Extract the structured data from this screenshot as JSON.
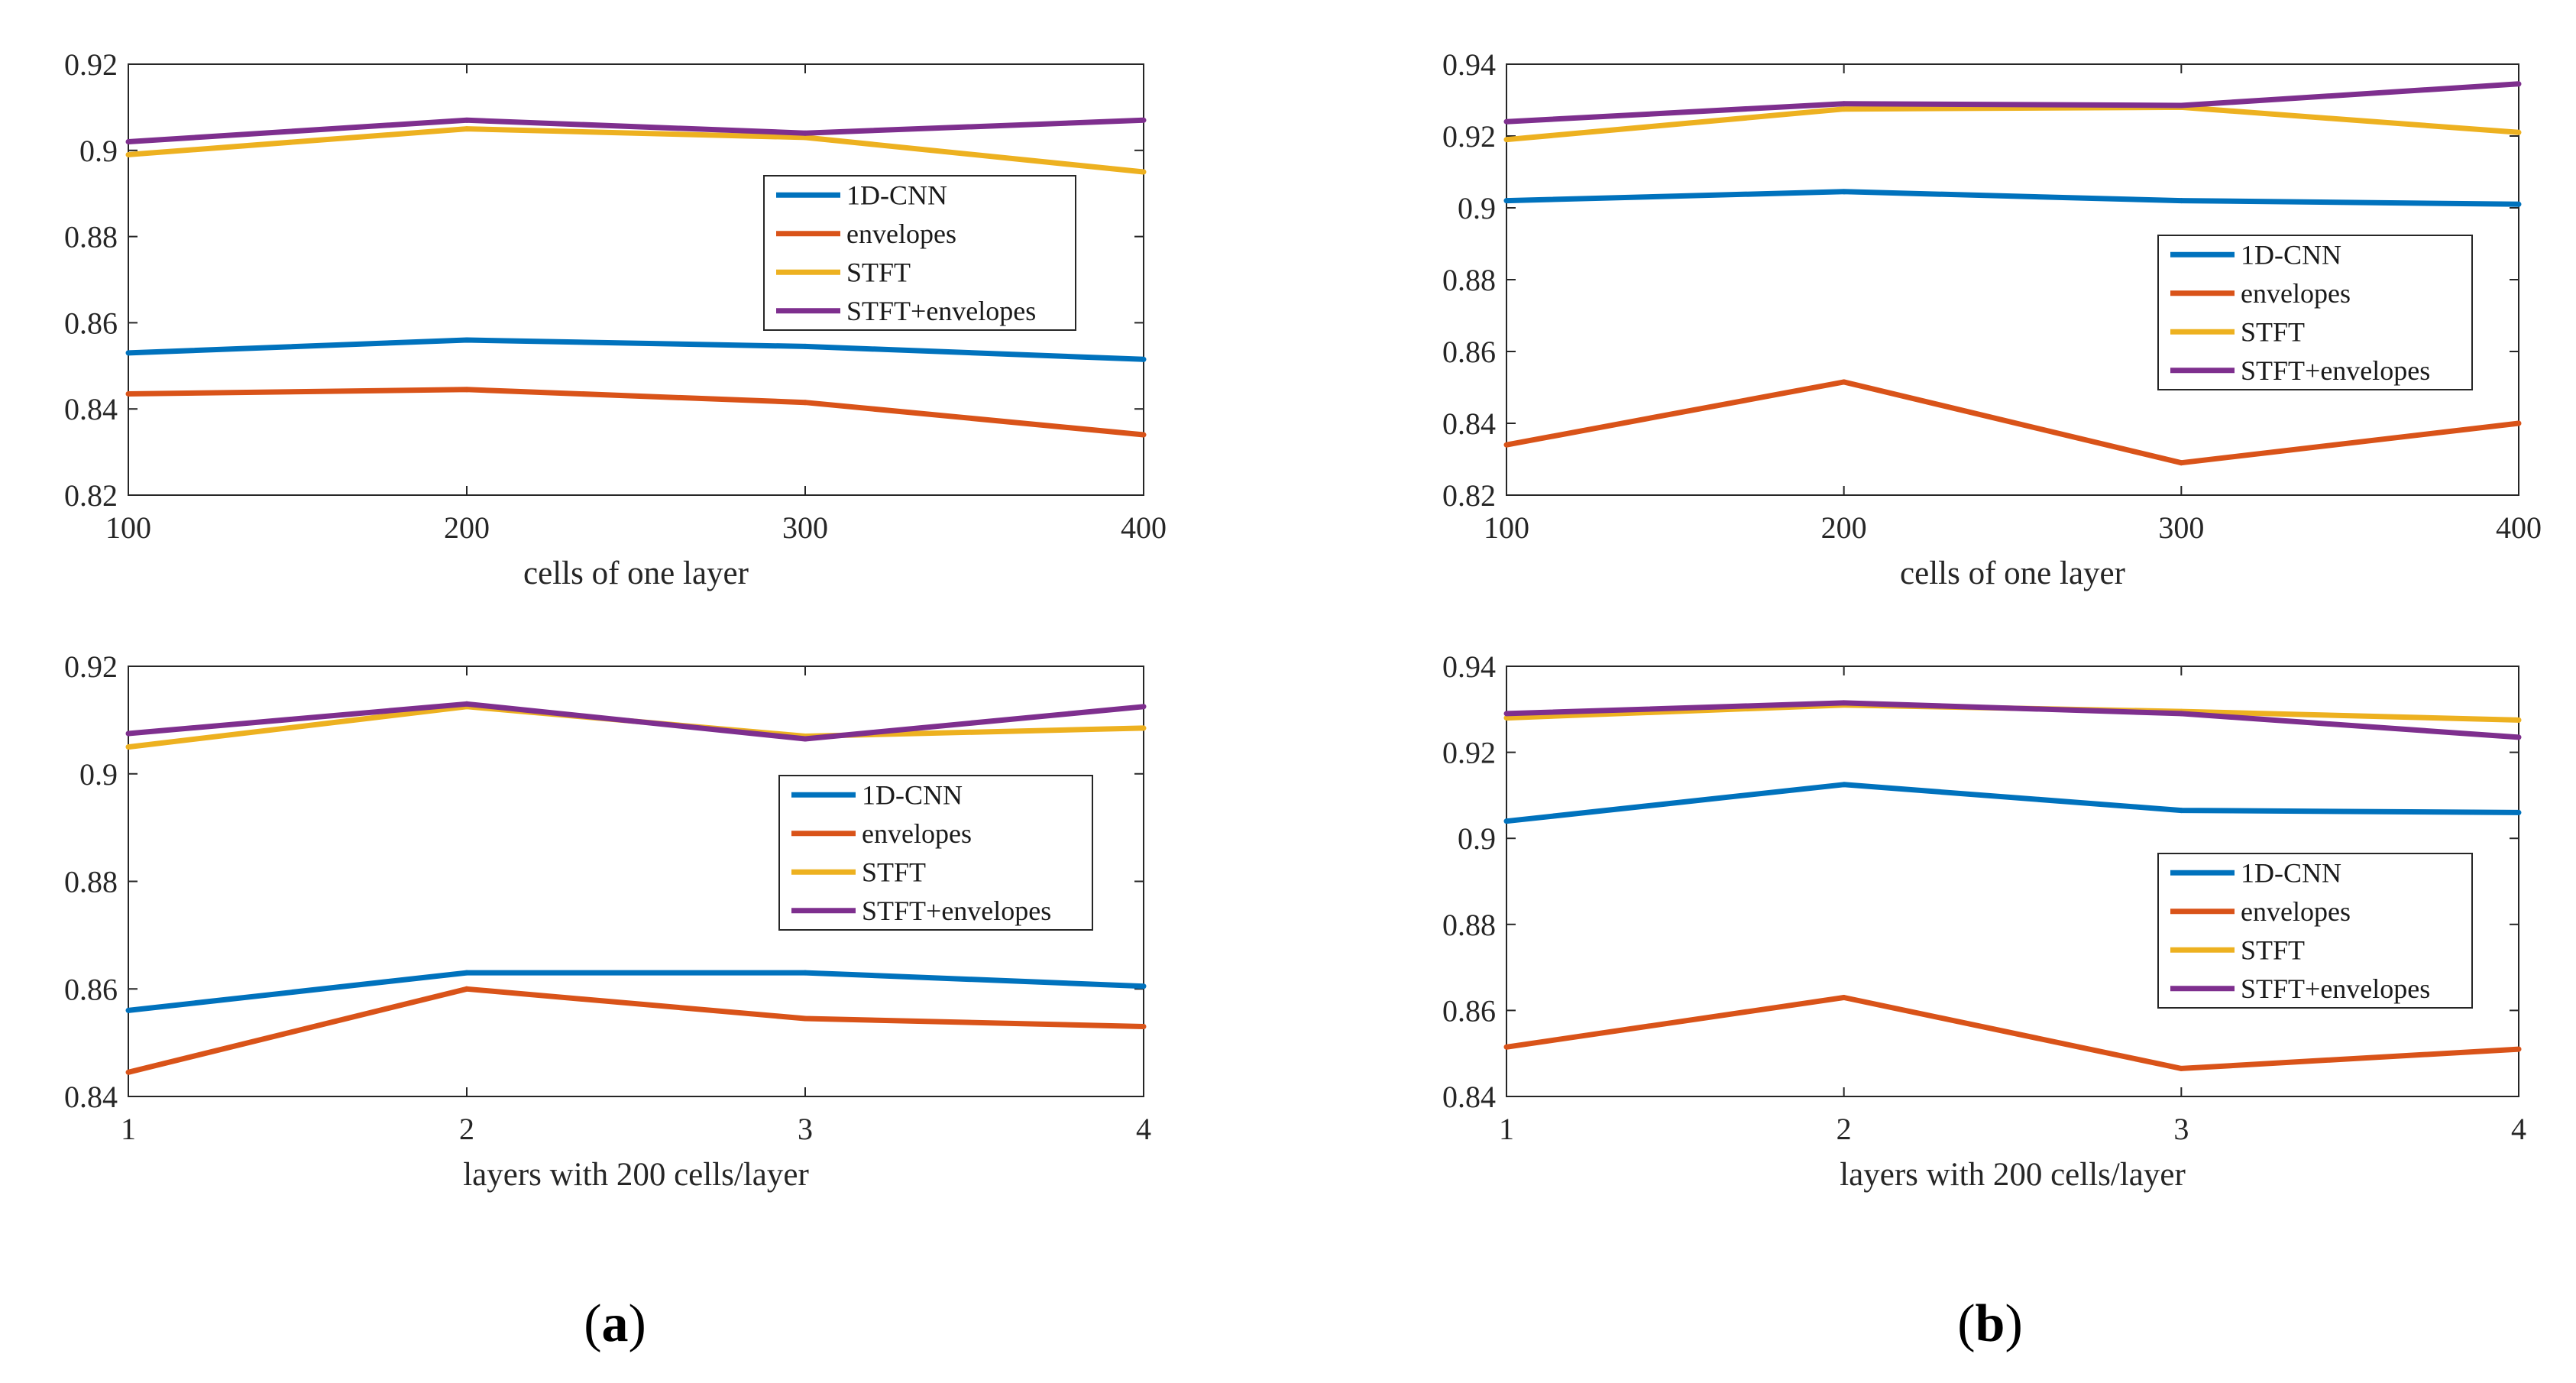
{
  "colors": {
    "1D-CNN": "#0072BD",
    "envelopes": "#D95319",
    "STFT": "#EDB120",
    "STFT+envelopes": "#7E2F8E"
  },
  "captions": [
    {
      "open": "(",
      "letter": "a",
      "close": ")"
    },
    {
      "open": "(",
      "letter": "b",
      "close": ")"
    }
  ],
  "chart_data": [
    {
      "type": "line",
      "panel": "a-top",
      "xlabel": "cells of one layer",
      "ylabel": "",
      "x": [
        100,
        200,
        300,
        400
      ],
      "xticks": [
        "100",
        "200",
        "300",
        "400"
      ],
      "ylim": [
        0.82,
        0.92
      ],
      "yticks": [
        "0.82",
        "0.84",
        "0.86",
        "0.88",
        "0.9",
        "0.92"
      ],
      "legend_position": "upper-right",
      "series": [
        {
          "name": "1D-CNN",
          "values": [
            0.853,
            0.856,
            0.8545,
            0.8515
          ]
        },
        {
          "name": "envelopes",
          "values": [
            0.8435,
            0.8445,
            0.8415,
            0.834
          ]
        },
        {
          "name": "STFT",
          "values": [
            0.899,
            0.905,
            0.903,
            0.895
          ]
        },
        {
          "name": "STFT+envelopes",
          "values": [
            0.902,
            0.907,
            0.904,
            0.907
          ]
        }
      ]
    },
    {
      "type": "line",
      "panel": "b-top",
      "xlabel": "cells of one layer",
      "ylabel": "",
      "x": [
        100,
        200,
        300,
        400
      ],
      "xticks": [
        "100",
        "200",
        "300",
        "400"
      ],
      "ylim": [
        0.82,
        0.94
      ],
      "yticks": [
        "0.82",
        "0.84",
        "0.86",
        "0.88",
        "0.9",
        "0.92",
        "0.94"
      ],
      "legend_position": "middle-right",
      "series": [
        {
          "name": "1D-CNN",
          "values": [
            0.902,
            0.9045,
            0.902,
            0.901
          ]
        },
        {
          "name": "envelopes",
          "values": [
            0.834,
            0.8515,
            0.829,
            0.84
          ]
        },
        {
          "name": "STFT",
          "values": [
            0.919,
            0.9275,
            0.928,
            0.921
          ]
        },
        {
          "name": "STFT+envelopes",
          "values": [
            0.924,
            0.929,
            0.9285,
            0.9345
          ]
        }
      ]
    },
    {
      "type": "line",
      "panel": "a-bottom",
      "xlabel": "layers with 200 cells/layer",
      "ylabel": "",
      "x": [
        1,
        2,
        3,
        4
      ],
      "xticks": [
        "1",
        "2",
        "3",
        "4"
      ],
      "ylim": [
        0.84,
        0.92
      ],
      "yticks": [
        "0.84",
        "0.86",
        "0.88",
        "0.9",
        "0.92"
      ],
      "legend_position": "middle-right",
      "series": [
        {
          "name": "1D-CNN",
          "values": [
            0.856,
            0.863,
            0.863,
            0.8605
          ]
        },
        {
          "name": "envelopes",
          "values": [
            0.8445,
            0.86,
            0.8545,
            0.853
          ]
        },
        {
          "name": "STFT",
          "values": [
            0.905,
            0.9125,
            0.907,
            0.9085
          ]
        },
        {
          "name": "STFT+envelopes",
          "values": [
            0.9075,
            0.913,
            0.9065,
            0.9125
          ]
        }
      ]
    },
    {
      "type": "line",
      "panel": "b-bottom",
      "xlabel": "layers with 200 cells/layer",
      "ylabel": "",
      "x": [
        1,
        2,
        3,
        4
      ],
      "xticks": [
        "1",
        "2",
        "3",
        "4"
      ],
      "ylim": [
        0.84,
        0.94
      ],
      "yticks": [
        "0.84",
        "0.86",
        "0.88",
        "0.9",
        "0.92",
        "0.94"
      ],
      "legend_position": "middle-right",
      "series": [
        {
          "name": "1D-CNN",
          "values": [
            0.904,
            0.9125,
            0.9065,
            0.906
          ]
        },
        {
          "name": "envelopes",
          "values": [
            0.8515,
            0.863,
            0.8465,
            0.851
          ]
        },
        {
          "name": "STFT",
          "values": [
            0.928,
            0.931,
            0.9295,
            0.9275
          ]
        },
        {
          "name": "STFT+envelopes",
          "values": [
            0.929,
            0.9315,
            0.929,
            0.9235
          ]
        }
      ]
    }
  ]
}
